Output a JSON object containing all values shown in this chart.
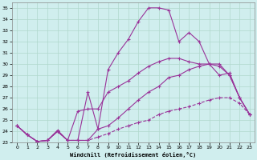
{
  "xlabel": "Windchill (Refroidissement éolien,°C)",
  "bg_color": "#d0eeee",
  "grid_color": "#b0d8cc",
  "line_color": "#993399",
  "xlim": [
    -0.5,
    23.5
  ],
  "ylim": [
    23,
    35.5
  ],
  "yticks": [
    23,
    24,
    25,
    26,
    27,
    28,
    29,
    30,
    31,
    32,
    33,
    34,
    35
  ],
  "xticks": [
    0,
    1,
    2,
    3,
    4,
    5,
    6,
    7,
    8,
    9,
    10,
    11,
    12,
    13,
    14,
    15,
    16,
    17,
    18,
    19,
    20,
    21,
    22,
    23
  ],
  "line1_x": [
    0,
    1,
    2,
    3,
    4,
    5,
    6,
    7,
    8,
    9,
    10,
    11,
    12,
    13,
    14,
    15,
    16,
    17,
    18,
    19,
    20,
    21,
    22,
    23
  ],
  "line1_y": [
    24.5,
    23.7,
    23.1,
    23.2,
    24.1,
    23.2,
    23.2,
    27.5,
    24.2,
    29.5,
    31.0,
    32.2,
    33.8,
    35.0,
    35.0,
    34.8,
    32.0,
    32.8,
    32.0,
    30.0,
    30.0,
    29.0,
    27.0,
    25.5
  ],
  "line2_x": [
    0,
    1,
    2,
    3,
    4,
    5,
    6,
    7,
    8,
    9,
    10,
    11,
    12,
    13,
    14,
    15,
    16,
    17,
    18,
    19,
    20,
    21,
    22,
    23
  ],
  "line2_y": [
    24.5,
    23.7,
    23.1,
    23.2,
    24.0,
    23.2,
    25.8,
    26.0,
    26.0,
    27.5,
    28.0,
    28.5,
    29.2,
    29.8,
    30.2,
    30.5,
    30.5,
    30.2,
    30.0,
    30.0,
    29.0,
    29.2,
    27.0,
    25.5
  ],
  "line3_x": [
    0,
    1,
    2,
    3,
    4,
    5,
    6,
    7,
    8,
    9,
    10,
    11,
    12,
    13,
    14,
    15,
    16,
    17,
    18,
    19,
    20,
    21,
    22,
    23
  ],
  "line3_y": [
    24.5,
    23.7,
    23.1,
    23.2,
    24.0,
    23.2,
    23.2,
    23.2,
    24.2,
    24.5,
    25.2,
    26.0,
    26.8,
    27.5,
    28.0,
    28.8,
    29.0,
    29.5,
    29.8,
    30.0,
    29.8,
    29.0,
    27.0,
    25.5
  ],
  "line4_x": [
    0,
    1,
    2,
    3,
    4,
    5,
    6,
    7,
    8,
    9,
    10,
    11,
    12,
    13,
    14,
    15,
    16,
    17,
    18,
    19,
    20,
    21,
    22,
    23
  ],
  "line4_y": [
    24.5,
    23.7,
    23.1,
    23.2,
    24.0,
    23.2,
    23.2,
    23.2,
    23.5,
    23.8,
    24.2,
    24.5,
    24.8,
    25.0,
    25.5,
    25.8,
    26.0,
    26.2,
    26.5,
    26.8,
    27.0,
    27.0,
    26.5,
    25.5
  ]
}
